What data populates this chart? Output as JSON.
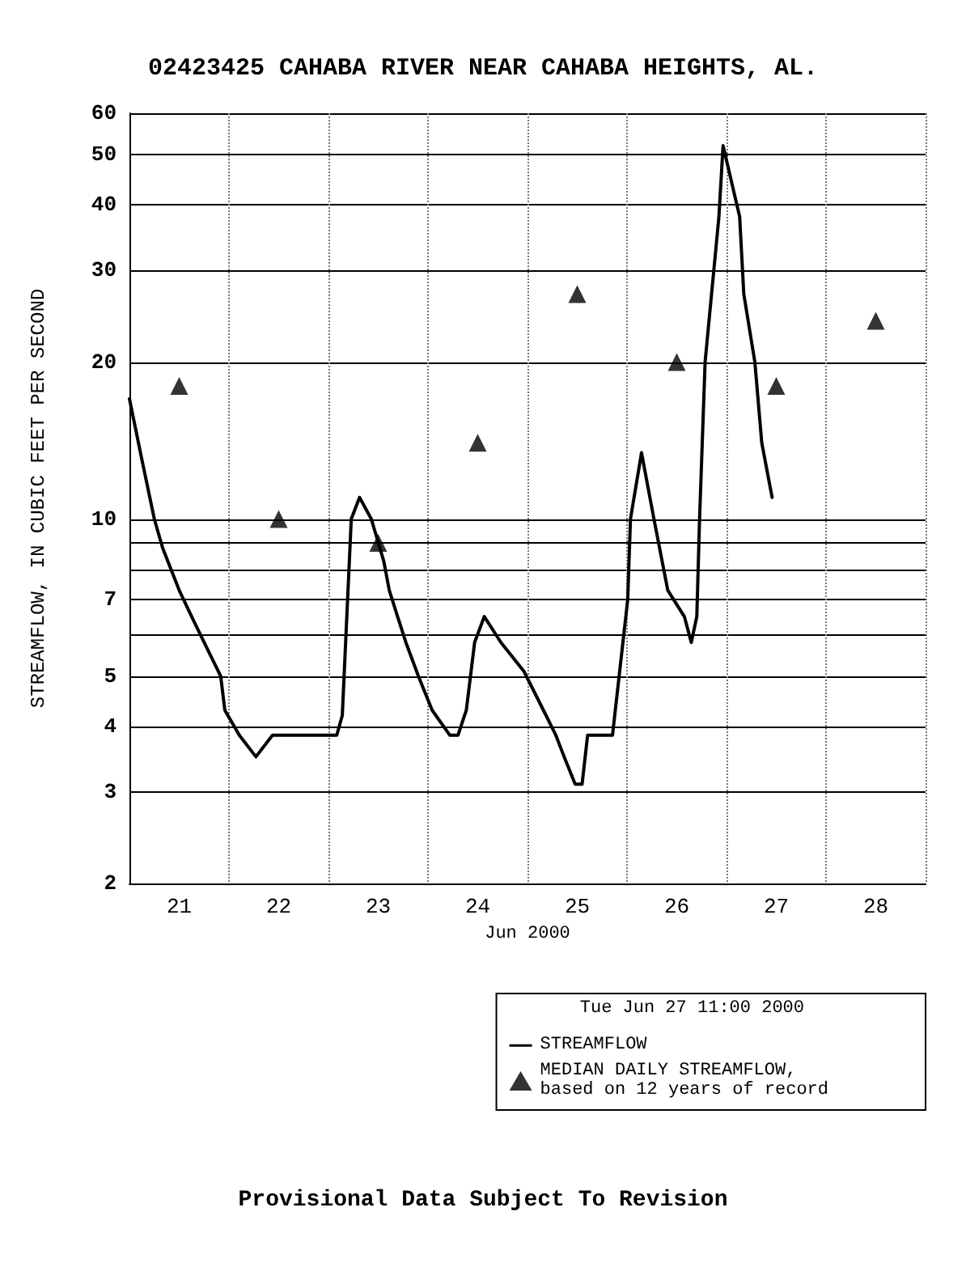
{
  "chart_data": {
    "type": "line",
    "title": "02423425 CAHABA RIVER NEAR CAHABA HEIGHTS, AL.",
    "ylabel": "STREAMFLOW, IN CUBIC FEET PER SECOND",
    "xlabel": "Jun 2000",
    "legend_title": "Tue Jun 27 11:00 2000",
    "annotations": [
      "Provisional Data Subject To Revision"
    ],
    "series": [
      {
        "name": "STREAMFLOW",
        "color": "#000000",
        "marker": "none",
        "x": [
          "2000-06-21T00:00",
          "2000-06-21T03:00",
          "2000-06-21T06:00",
          "2000-06-21T08:00",
          "2000-06-21T12:00",
          "2000-06-21T15:00",
          "2000-06-21T18:00",
          "2000-06-21T22:00",
          "2000-06-21T23:00",
          "2000-06-22T02:30",
          "2000-06-22T06:30",
          "2000-06-22T10:30",
          "2000-06-23T02:00",
          "2000-06-23T03:20",
          "2000-06-23T05:30",
          "2000-06-23T07:30",
          "2000-06-23T10:20",
          "2000-06-23T13:20",
          "2000-06-23T14:40",
          "2000-06-23T16:40",
          "2000-06-23T18:40",
          "2000-06-23T21:40",
          "2000-06-24T01:00",
          "2000-06-24T05:15",
          "2000-06-24T07:15",
          "2000-06-24T09:15",
          "2000-06-24T11:15",
          "2000-06-24T13:35",
          "2000-06-24T17:35",
          "2000-06-24T23:10",
          "2000-06-25T03:50",
          "2000-06-25T06:50",
          "2000-06-25T08:50",
          "2000-06-25T11:30",
          "2000-06-25T13:10",
          "2000-06-25T14:30",
          "2000-06-25T20:30",
          "2000-06-26T00:10",
          "2000-06-26T00:50",
          "2000-06-26T03:30",
          "2000-06-26T06:30",
          "2000-06-26T09:50",
          "2000-06-26T13:50",
          "2000-06-26T15:30",
          "2000-06-26T16:50",
          "2000-06-26T17:30",
          "2000-06-26T18:50",
          "2000-06-26T22:10",
          "2000-06-26T23:10",
          "2000-06-27T03:10",
          "2000-06-27T04:10",
          "2000-06-27T06:50",
          "2000-06-27T08:30",
          "2000-06-27T11:00"
        ],
        "values": [
          17,
          13,
          10,
          8.8,
          7.3,
          6.5,
          5.8,
          5,
          4.3,
          3.85,
          3.5,
          3.85,
          3.85,
          4.2,
          10,
          11,
          10,
          8.3,
          7.3,
          6.5,
          5.8,
          5,
          4.3,
          3.85,
          3.85,
          4.3,
          5.8,
          6.5,
          5.8,
          5.1,
          4.3,
          3.85,
          3.5,
          3.1,
          3.1,
          3.85,
          3.85,
          7,
          10,
          13.4,
          10,
          7.3,
          6.5,
          5.8,
          6.5,
          10,
          20,
          38,
          52,
          38,
          27,
          20,
          14,
          11
        ]
      },
      {
        "name": "MEDIAN DAILY STREAMFLOW,\nbased on 12 years of record",
        "type": "scatter",
        "color": "#000000",
        "marker": "triangle",
        "x": [
          "2000-06-21T12:00",
          "2000-06-22T12:00",
          "2000-06-23T12:00",
          "2000-06-24T12:00",
          "2000-06-25T12:00",
          "2000-06-26T12:00",
          "2000-06-27T12:00",
          "2000-06-28T12:00"
        ],
        "values": [
          18,
          10,
          9,
          14,
          27,
          20,
          18,
          24
        ]
      }
    ],
    "xlim": [
      "2000-06-21T00:00",
      "2000-06-29T00:00"
    ],
    "xticks": [
      {
        "value": "2000-06-21T00:00",
        "label": null
      },
      {
        "value": "2000-06-21T12:00",
        "label": "21"
      },
      {
        "value": "2000-06-22T00:00",
        "label": null
      },
      {
        "value": "2000-06-22T12:00",
        "label": "22"
      },
      {
        "value": "2000-06-23T00:00",
        "label": null
      },
      {
        "value": "2000-06-23T12:00",
        "label": "23"
      },
      {
        "value": "2000-06-24T00:00",
        "label": null
      },
      {
        "value": "2000-06-24T12:00",
        "label": "24"
      },
      {
        "value": "2000-06-25T00:00",
        "label": null
      },
      {
        "value": "2000-06-25T12:00",
        "label": "25"
      },
      {
        "value": "2000-06-26T00:00",
        "label": null
      },
      {
        "value": "2000-06-26T12:00",
        "label": "26"
      },
      {
        "value": "2000-06-27T00:00",
        "label": null
      },
      {
        "value": "2000-06-27T12:00",
        "label": "27"
      },
      {
        "value": "2000-06-28T00:00",
        "label": null
      },
      {
        "value": "2000-06-28T12:00",
        "label": "28"
      },
      {
        "value": "2000-06-29T00:00",
        "label": null
      }
    ],
    "ylim": [
      2,
      60
    ],
    "yticks": [
      2,
      3,
      4,
      5,
      {
        "value": 6,
        "label": null
      },
      7,
      {
        "value": 8,
        "label": null
      },
      {
        "value": 9,
        "label": null
      },
      10,
      20,
      30,
      40,
      50,
      60
    ],
    "log": "y",
    "grid": true,
    "legend": "bottom right",
    "line_style": "solid"
  }
}
